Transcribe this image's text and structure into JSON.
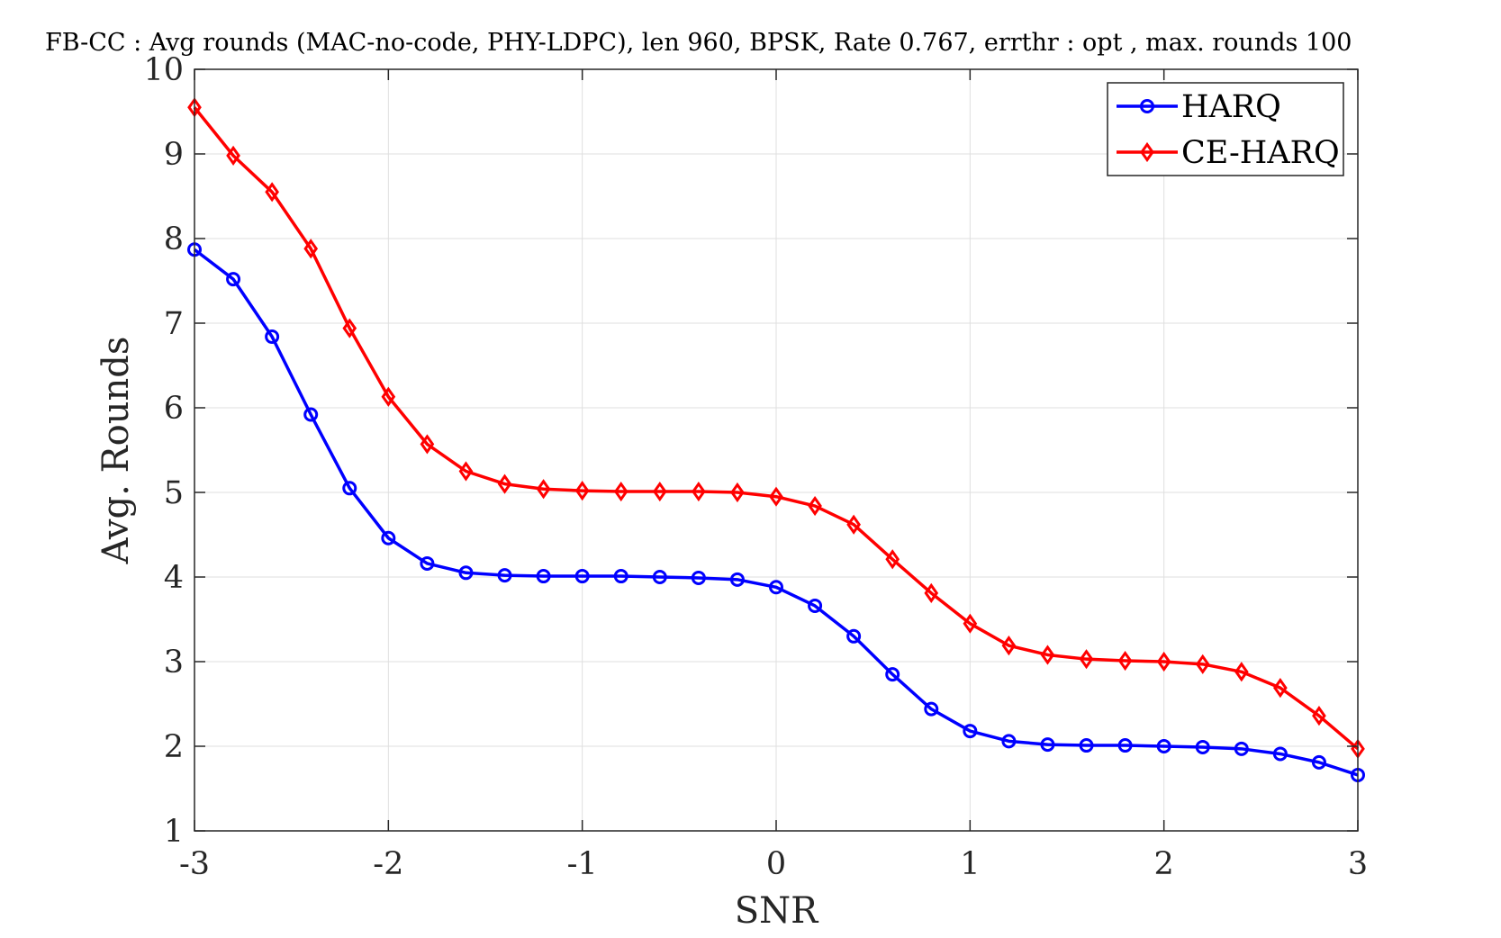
{
  "colors": {
    "background": "#ffffff",
    "grid": "#dfdfdf",
    "axis": "#262626",
    "harq": "#0000ff",
    "ce_harq": "#ff0000"
  },
  "chart_data": {
    "type": "line",
    "title": "FB-CC : Avg rounds (MAC-no-code, PHY-LDPC), len 960, BPSK, Rate 0.767, errthr : opt , max. rounds 100",
    "xlabel": "SNR",
    "ylabel": "Avg. Rounds",
    "xlim": [
      -3,
      3
    ],
    "ylim": [
      1,
      10
    ],
    "xticks": [
      -3,
      -2,
      -1,
      0,
      1,
      2,
      3
    ],
    "yticks": [
      1,
      2,
      3,
      4,
      5,
      6,
      7,
      8,
      9,
      10
    ],
    "xtick_labels": [
      "-3",
      "-2",
      "-1",
      "0",
      "1",
      "2",
      "3"
    ],
    "ytick_labels": [
      "1",
      "2",
      "3",
      "4",
      "5",
      "6",
      "7",
      "8",
      "9",
      "10"
    ],
    "grid": true,
    "legend_position": "top-right",
    "x": [
      -3,
      -2.8,
      -2.6,
      -2.4,
      -2.2,
      -2,
      -1.8,
      -1.6,
      -1.4,
      -1.2,
      -1,
      -0.8,
      -0.6,
      -0.4,
      -0.2,
      0,
      0.2,
      0.4,
      0.6,
      0.8,
      1,
      1.2,
      1.4,
      1.6,
      1.8,
      2,
      2.2,
      2.4,
      2.6,
      2.8,
      3
    ],
    "series": [
      {
        "name": "HARQ",
        "color": "#0000ff",
        "marker": "circle",
        "values": [
          7.87,
          7.52,
          6.84,
          5.92,
          5.05,
          4.46,
          4.16,
          4.05,
          4.02,
          4.01,
          4.01,
          4.01,
          4.0,
          3.99,
          3.97,
          3.88,
          3.66,
          3.3,
          2.85,
          2.44,
          2.18,
          2.06,
          2.02,
          2.01,
          2.01,
          2.0,
          1.99,
          1.97,
          1.91,
          1.81,
          1.66
        ]
      },
      {
        "name": "CE-HARQ",
        "color": "#ff0000",
        "marker": "diamond",
        "values": [
          9.55,
          8.98,
          8.55,
          7.88,
          6.94,
          6.13,
          5.57,
          5.25,
          5.1,
          5.04,
          5.02,
          5.01,
          5.01,
          5.01,
          5.0,
          4.95,
          4.84,
          4.62,
          4.21,
          3.81,
          3.45,
          3.19,
          3.08,
          3.03,
          3.01,
          3.0,
          2.97,
          2.88,
          2.69,
          2.36,
          1.97
        ]
      }
    ]
  }
}
